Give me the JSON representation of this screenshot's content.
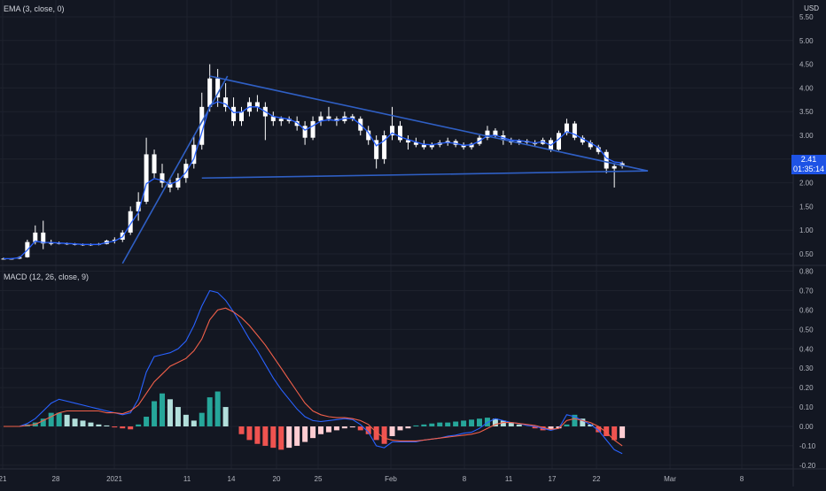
{
  "colors": {
    "background": "#131722",
    "grid": "#1e222d",
    "separator": "#2a2e39",
    "candle_body": "#ffffff",
    "ema": "#2962ff",
    "trendline": "#2f5fc4",
    "macd_line": "#2962ff",
    "signal_line": "#f2604a",
    "hist_pos_strong": "#26a69a",
    "hist_pos_weak": "#b2dfdb",
    "hist_neg_strong": "#ef5350",
    "hist_neg_weak": "#ffcdd2",
    "badge": "#1e53e5"
  },
  "panes": {
    "price_label": "EMA (3, close, 0)",
    "macd_label": "MACD (12, 26, close, 9)",
    "currency": "USD",
    "last_price": "2.41",
    "countdown": "01:35:14"
  },
  "chart_data": [
    {
      "type": "candlestick",
      "series_name": "EMA (3, close, 0)",
      "ylim": [
        0.3,
        5.5
      ],
      "y_ticks": [
        "5.50",
        "5.00",
        "4.50",
        "4.00",
        "3.50",
        "3.00",
        "2.50",
        "2.00",
        "1.50",
        "1.00",
        "0.50"
      ],
      "x_ticks": [
        "21",
        "28",
        "2021",
        "11",
        "14",
        "20",
        "25",
        "Feb",
        "8",
        "11",
        "17",
        "22",
        "Mar",
        "8"
      ],
      "candles": [
        [
          0.4,
          0.42,
          0.38,
          0.4
        ],
        [
          0.4,
          0.41,
          0.38,
          0.4
        ],
        [
          0.4,
          0.45,
          0.39,
          0.43
        ],
        [
          0.43,
          0.8,
          0.42,
          0.75
        ],
        [
          0.75,
          1.1,
          0.7,
          0.95
        ],
        [
          0.95,
          1.2,
          0.6,
          0.72
        ],
        [
          0.72,
          0.8,
          0.68,
          0.73
        ],
        [
          0.73,
          0.76,
          0.7,
          0.72
        ],
        [
          0.72,
          0.74,
          0.69,
          0.71
        ],
        [
          0.71,
          0.73,
          0.68,
          0.7
        ],
        [
          0.7,
          0.72,
          0.67,
          0.69
        ],
        [
          0.69,
          0.72,
          0.67,
          0.7
        ],
        [
          0.7,
          0.73,
          0.68,
          0.71
        ],
        [
          0.71,
          0.8,
          0.7,
          0.78
        ],
        [
          0.78,
          0.85,
          0.72,
          0.8
        ],
        [
          0.8,
          1.0,
          0.75,
          0.95
        ],
        [
          0.95,
          1.5,
          0.9,
          1.4
        ],
        [
          1.4,
          1.8,
          1.2,
          1.6
        ],
        [
          1.6,
          2.95,
          1.55,
          2.6
        ],
        [
          2.6,
          2.7,
          2.1,
          2.2
        ],
        [
          2.2,
          2.4,
          1.9,
          2.0
        ],
        [
          2.0,
          2.1,
          1.8,
          1.9
        ],
        [
          1.9,
          2.2,
          1.85,
          2.1
        ],
        [
          2.1,
          2.5,
          2.0,
          2.4
        ],
        [
          2.4,
          3.0,
          2.3,
          2.8
        ],
        [
          2.8,
          3.9,
          2.7,
          3.6
        ],
        [
          3.6,
          4.5,
          3.5,
          4.2
        ],
        [
          4.2,
          4.4,
          3.6,
          3.8
        ],
        [
          3.8,
          4.1,
          3.5,
          3.6
        ],
        [
          3.6,
          3.8,
          3.2,
          3.3
        ],
        [
          3.3,
          3.6,
          3.2,
          3.5
        ],
        [
          3.5,
          3.8,
          3.4,
          3.7
        ],
        [
          3.7,
          3.85,
          3.5,
          3.6
        ],
        [
          3.6,
          3.7,
          2.9,
          3.4
        ],
        [
          3.4,
          3.5,
          3.2,
          3.3
        ],
        [
          3.3,
          3.4,
          3.2,
          3.35
        ],
        [
          3.35,
          3.4,
          3.25,
          3.3
        ],
        [
          3.3,
          3.4,
          3.1,
          3.2
        ],
        [
          3.2,
          3.3,
          2.8,
          2.95
        ],
        [
          2.95,
          3.4,
          2.9,
          3.3
        ],
        [
          3.3,
          3.5,
          3.2,
          3.4
        ],
        [
          3.4,
          3.6,
          3.3,
          3.35
        ],
        [
          3.35,
          3.4,
          3.2,
          3.3
        ],
        [
          3.3,
          3.5,
          3.25,
          3.4
        ],
        [
          3.4,
          3.45,
          3.3,
          3.35
        ],
        [
          3.35,
          3.4,
          3.0,
          3.1
        ],
        [
          3.1,
          3.2,
          2.8,
          2.9
        ],
        [
          2.9,
          3.0,
          2.3,
          2.5
        ],
        [
          2.5,
          3.1,
          2.4,
          3.0
        ],
        [
          3.0,
          3.6,
          2.9,
          3.2
        ],
        [
          3.2,
          3.3,
          2.85,
          2.9
        ],
        [
          2.9,
          3.0,
          2.7,
          2.85
        ],
        [
          2.85,
          2.95,
          2.75,
          2.8
        ],
        [
          2.8,
          2.9,
          2.7,
          2.75
        ],
        [
          2.75,
          2.85,
          2.7,
          2.8
        ],
        [
          2.8,
          2.9,
          2.75,
          2.85
        ],
        [
          2.85,
          2.95,
          2.78,
          2.88
        ],
        [
          2.88,
          2.92,
          2.75,
          2.8
        ],
        [
          2.8,
          2.85,
          2.7,
          2.75
        ],
        [
          2.75,
          2.85,
          2.7,
          2.82
        ],
        [
          2.82,
          3.0,
          2.78,
          2.95
        ],
        [
          2.95,
          3.2,
          2.9,
          3.1
        ],
        [
          3.1,
          3.15,
          2.95,
          3.0
        ],
        [
          3.0,
          3.1,
          2.8,
          2.9
        ],
        [
          2.9,
          2.95,
          2.8,
          2.85
        ],
        [
          2.85,
          2.92,
          2.8,
          2.88
        ],
        [
          2.88,
          2.92,
          2.82,
          2.85
        ],
        [
          2.85,
          2.9,
          2.78,
          2.82
        ],
        [
          2.82,
          2.95,
          2.8,
          2.9
        ],
        [
          2.9,
          2.95,
          2.65,
          2.7
        ],
        [
          2.7,
          3.1,
          2.68,
          3.05
        ],
        [
          3.05,
          3.35,
          3.0,
          3.25
        ],
        [
          3.25,
          3.3,
          2.9,
          2.95
        ],
        [
          2.95,
          3.0,
          2.8,
          2.85
        ],
        [
          2.85,
          2.9,
          2.7,
          2.75
        ],
        [
          2.75,
          2.8,
          2.6,
          2.65
        ],
        [
          2.65,
          2.7,
          2.2,
          2.3
        ],
        [
          2.3,
          2.4,
          1.9,
          2.35
        ],
        [
          2.35,
          2.45,
          2.3,
          2.41
        ]
      ],
      "ema": [
        0.4,
        0.4,
        0.42,
        0.58,
        0.77,
        0.74,
        0.74,
        0.73,
        0.72,
        0.71,
        0.7,
        0.7,
        0.7,
        0.74,
        0.77,
        0.86,
        1.13,
        1.37,
        1.98,
        2.09,
        2.05,
        1.97,
        2.04,
        2.22,
        2.51,
        3.06,
        3.63,
        3.71,
        3.66,
        3.48,
        3.49,
        3.6,
        3.6,
        3.5,
        3.4,
        3.37,
        3.34,
        3.27,
        3.11,
        3.2,
        3.3,
        3.33,
        3.31,
        3.36,
        3.36,
        3.23,
        3.06,
        2.78,
        2.89,
        3.05,
        2.97,
        2.91,
        2.86,
        2.81,
        2.8,
        2.83,
        2.85,
        2.83,
        2.79,
        2.8,
        2.88,
        2.99,
        3.0,
        2.95,
        2.9,
        2.89,
        2.87,
        2.84,
        2.87,
        2.79,
        2.92,
        3.08,
        3.02,
        2.93,
        2.84,
        2.74,
        2.52,
        2.44,
        2.42
      ],
      "trendlines": [
        {
          "from": [
            25,
            2.1
          ],
          "to": [
            79,
            2.25
          ]
        },
        {
          "from": [
            26,
            4.25
          ],
          "to": [
            79,
            2.25
          ]
        },
        {
          "from": [
            15,
            0.3
          ],
          "to": [
            26,
            4.25
          ]
        }
      ]
    },
    {
      "type": "bar+line",
      "series_name": "MACD (12, 26, close, 9)",
      "ylim": [
        -0.2,
        0.8
      ],
      "y_ticks": [
        "0.80",
        "0.70",
        "0.60",
        "0.50",
        "0.40",
        "0.30",
        "0.20",
        "0.10",
        "0.00",
        "-0.10",
        "-0.20"
      ],
      "series": [
        {
          "values": [
            0,
            0,
            0,
            0.015,
            0.04,
            0.08,
            0.12,
            0.14,
            0.13,
            0.12,
            0.11,
            0.1,
            0.09,
            0.08,
            0.07,
            0.06,
            0.07,
            0.14,
            0.28,
            0.36,
            0.37,
            0.38,
            0.4,
            0.44,
            0.52,
            0.62,
            0.7,
            0.69,
            0.65,
            0.59,
            0.52,
            0.45,
            0.39,
            0.32,
            0.25,
            0.19,
            0.14,
            0.09,
            0.05,
            0.03,
            0.025,
            0.03,
            0.035,
            0.04,
            0.035,
            0.01,
            -0.03,
            -0.1,
            -0.11,
            -0.08,
            -0.08,
            -0.08,
            -0.08,
            -0.07,
            -0.065,
            -0.06,
            -0.05,
            -0.045,
            -0.035,
            -0.03,
            -0.01,
            0.02,
            0.04,
            0.03,
            0.02,
            0.015,
            0.005,
            0.0,
            -0.01,
            -0.02,
            -0.01,
            0.06,
            0.05,
            0.03,
            0.01,
            -0.02,
            -0.07,
            -0.12,
            -0.14
          ]
        },
        {
          "values": [
            0,
            0,
            0,
            0.005,
            0.01,
            0.03,
            0.05,
            0.07,
            0.08,
            0.08,
            0.08,
            0.08,
            0.08,
            0.07,
            0.07,
            0.065,
            0.08,
            0.11,
            0.17,
            0.23,
            0.27,
            0.31,
            0.33,
            0.35,
            0.39,
            0.45,
            0.55,
            0.6,
            0.61,
            0.59,
            0.56,
            0.52,
            0.47,
            0.42,
            0.36,
            0.3,
            0.24,
            0.18,
            0.12,
            0.08,
            0.06,
            0.05,
            0.045,
            0.045,
            0.04,
            0.03,
            0.01,
            -0.03,
            -0.06,
            -0.07,
            -0.075,
            -0.075,
            -0.075,
            -0.07,
            -0.065,
            -0.06,
            -0.055,
            -0.05,
            -0.045,
            -0.04,
            -0.03,
            -0.01,
            0.01,
            0.02,
            0.02,
            0.015,
            0.01,
            0.005,
            -0.005,
            -0.015,
            -0.01,
            0.03,
            0.04,
            0.03,
            0.02,
            0.0,
            -0.03,
            -0.07,
            -0.1
          ]
        }
      ],
      "histogram": [
        0,
        0,
        0,
        0.01,
        0.02,
        0.04,
        0.07,
        0.07,
        0.06,
        0.04,
        0.03,
        0.02,
        0.01,
        0.005,
        -0.005,
        -0.01,
        -0.015,
        0.01,
        0.05,
        0.13,
        0.17,
        0.14,
        0.1,
        0.06,
        0.03,
        0.07,
        0.15,
        0.18,
        0.1,
        0.0,
        -0.04,
        -0.07,
        -0.09,
        -0.1,
        -0.11,
        -0.12,
        -0.11,
        -0.1,
        -0.08,
        -0.06,
        -0.04,
        -0.03,
        -0.02,
        -0.01,
        -0.005,
        -0.02,
        -0.04,
        -0.07,
        -0.09,
        -0.05,
        -0.02,
        -0.01,
        0.005,
        0.01,
        0.015,
        0.02,
        0.02,
        0.025,
        0.03,
        0.035,
        0.04,
        0.045,
        0.04,
        0.03,
        0.02,
        0.01,
        0.0,
        -0.01,
        -0.02,
        -0.015,
        -0.01,
        0.01,
        0.06,
        0.04,
        0.01,
        -0.03,
        -0.05,
        -0.07,
        -0.06
      ]
    }
  ]
}
